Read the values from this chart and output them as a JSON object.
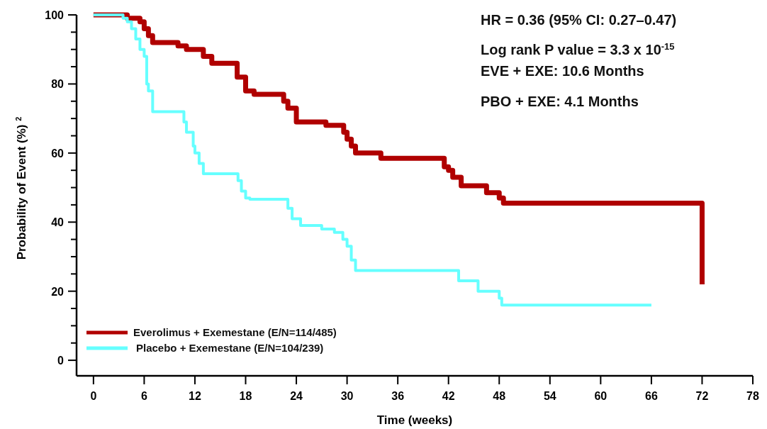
{
  "chart_data": {
    "type": "step",
    "xlabel": "Time (weeks)",
    "ylabel": "Probability of Event (%) $^{2}$",
    "xlim": [
      -2,
      78
    ],
    "xticks": [
      0,
      6,
      12,
      18,
      24,
      30,
      36,
      42,
      48,
      54,
      60,
      66,
      72,
      78
    ],
    "ylim": [
      -4.5,
      100
    ],
    "yticks": [
      0,
      {
        "value": 5,
        "label": null
      },
      {
        "value": 10,
        "label": null
      },
      {
        "value": 15,
        "label": null
      },
      20,
      {
        "value": 25,
        "label": null
      },
      {
        "value": 30,
        "label": null
      },
      {
        "value": 35,
        "label": null
      },
      40,
      {
        "value": 45,
        "label": null
      },
      {
        "value": 50,
        "label": null
      },
      {
        "value": 55,
        "label": null
      },
      60,
      {
        "value": 65,
        "label": null
      },
      {
        "value": 70,
        "label": null
      },
      {
        "value": 75,
        "label": null
      },
      80,
      {
        "value": 85,
        "label": null
      },
      {
        "value": 90,
        "label": null
      },
      {
        "value": 95,
        "label": null
      },
      100
    ],
    "grid": false,
    "legend": "bottom left",
    "marker": "none",
    "line_style": "solid",
    "annotations": [
      "HR = 0.36 (95% CI: 0.27–0.47)",
      "Log rank P  value = 3.3 x 10$^{-15}$",
      "EVE + EXE: 10.6 Months",
      "PBO + EXE: 4.1 Months"
    ],
    "series": [
      {
        "name": "Everolimus + Exemestane (E/N=114/485)",
        "color": "#b00000",
        "x": [
          0,
          4,
          5.5,
          6,
          6.5,
          7,
          10,
          11,
          13,
          14,
          17,
          18,
          19,
          22.5,
          23,
          24,
          27.5,
          29.6,
          30,
          30.5,
          31,
          34,
          41.5,
          42,
          42.5,
          43.5,
          46.5,
          48,
          48.5,
          72,
          72
        ],
        "values": [
          100,
          99,
          98,
          96,
          94,
          92,
          91,
          90,
          88,
          86,
          82,
          78,
          77,
          75,
          73,
          69,
          68,
          66,
          64,
          62,
          60,
          58.5,
          56,
          55,
          53,
          50.5,
          48.5,
          47,
          45.5,
          45.5,
          22
        ]
      },
      {
        "name": "Placebo + Exemestane (E/N=104/239)",
        "color": "#66ffff",
        "x": [
          0,
          3.5,
          4,
          4.5,
          5,
          5.5,
          6,
          6.3,
          6.5,
          7,
          10.7,
          11,
          11.8,
          12,
          12.5,
          13,
          17.1,
          17.5,
          18,
          18.5,
          23,
          23.5,
          24.5,
          25.5,
          27,
          28.5,
          29.5,
          30,
          30.5,
          31,
          43.2,
          45.5,
          48,
          48.3,
          66
        ],
        "values": [
          100,
          99,
          98,
          96,
          93,
          90,
          88,
          80,
          78,
          72,
          69,
          66,
          62,
          60,
          57,
          54,
          52,
          49,
          47,
          46.6,
          44,
          41,
          39,
          39,
          38,
          37,
          35,
          33,
          29,
          26,
          23,
          20,
          18,
          16,
          16
        ]
      }
    ]
  }
}
